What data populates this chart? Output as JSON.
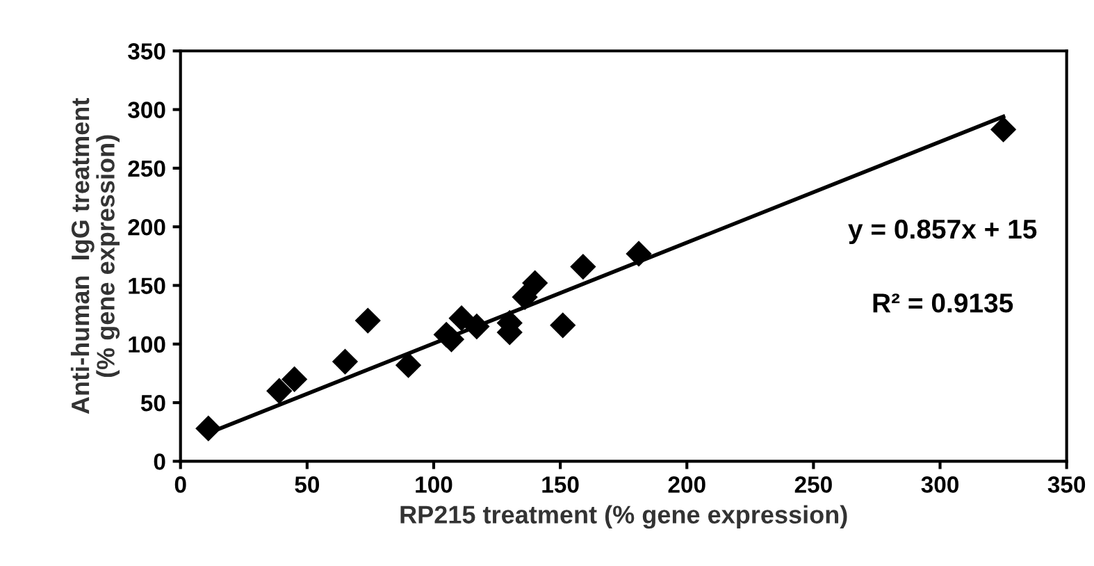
{
  "chart_data": {
    "type": "scatter",
    "xlabel": "RP215 treatment (% gene expression)",
    "ylabel": "Anti-human  IgG treatment\n(% gene expression)",
    "x": [
      11,
      39,
      45,
      65,
      74,
      90,
      105,
      107,
      111,
      117,
      130,
      130,
      136,
      140,
      151,
      159,
      181,
      325
    ],
    "series": [
      {
        "color": "#000000",
        "marker": "diamond",
        "values": [
          28,
          60,
          70,
          85,
          120,
          82,
          108,
          104,
          122,
          115,
          118,
          110,
          140,
          152,
          116,
          166,
          177,
          283
        ]
      },
      {
        "type": "line",
        "color": "#000000",
        "marker": "none",
        "x": [
          11,
          325
        ],
        "values": [
          24,
          294
        ]
      }
    ],
    "annotations": [
      "y = 0.857x + 15",
      "R² = 0.9135"
    ],
    "xlim": [
      0,
      350
    ],
    "ylim": [
      0,
      350
    ],
    "xticks": [
      0,
      50,
      100,
      150,
      200,
      250,
      300,
      350
    ],
    "yticks": [
      0,
      50,
      100,
      150,
      200,
      250,
      300,
      350
    ],
    "grid": false,
    "legend": false
  }
}
